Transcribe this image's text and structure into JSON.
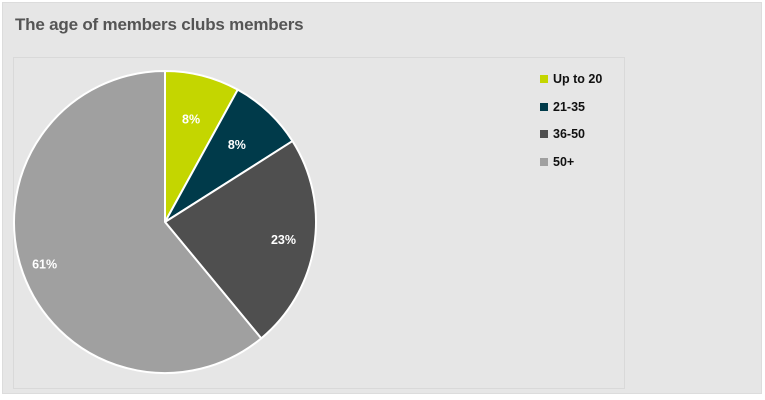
{
  "chart_data": {
    "type": "pie",
    "title": "The age of members clubs members",
    "categories": [
      "Up to 20",
      "21-35",
      "36-50",
      "50+"
    ],
    "values": [
      8,
      8,
      23,
      61
    ],
    "labels": [
      "8%",
      "8%",
      "23%",
      "61%"
    ],
    "colors": [
      "#c4d600",
      "#003a4a",
      "#4f4f4f",
      "#a0a0a0"
    ],
    "legend_position": "top-right",
    "start_angle": "top, clockwise"
  }
}
